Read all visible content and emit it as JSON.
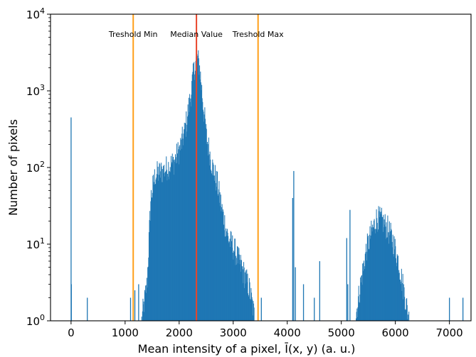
{
  "chart_data": {
    "type": "bar",
    "title": "",
    "xlabel": "Mean intensity of a pixel, Ī(x, y) (a. u.)",
    "ylabel": "Number of pixels",
    "xlim": [
      -380,
      7400
    ],
    "ylim": [
      1,
      10000
    ],
    "yscale": "log",
    "grid": false,
    "bar_color": "#1f77b4",
    "x_ticks": [
      0,
      1000,
      2000,
      3000,
      4000,
      5000,
      6000,
      7000
    ],
    "x_tick_labels": [
      "0",
      "1000",
      "2000",
      "3000",
      "4000",
      "5000",
      "6000",
      "7000"
    ],
    "y_ticks": [
      1,
      10,
      100,
      1000,
      10000
    ],
    "y_tick_labels": [
      {
        "base": "10",
        "exp": "0"
      },
      {
        "base": "10",
        "exp": "1"
      },
      {
        "base": "10",
        "exp": "2"
      },
      {
        "base": "10",
        "exp": "3"
      },
      {
        "base": "10",
        "exp": "4"
      }
    ],
    "histogram_envelope": [
      {
        "x": 1300,
        "y": 1
      },
      {
        "x": 1400,
        "y": 3
      },
      {
        "x": 1470,
        "y": 40
      },
      {
        "x": 1550,
        "y": 80
      },
      {
        "x": 1700,
        "y": 90
      },
      {
        "x": 1900,
        "y": 120
      },
      {
        "x": 2000,
        "y": 170
      },
      {
        "x": 2100,
        "y": 300
      },
      {
        "x": 2200,
        "y": 800
      },
      {
        "x": 2250,
        "y": 1500
      },
      {
        "x": 2300,
        "y": 2400
      },
      {
        "x": 2330,
        "y": 2700
      },
      {
        "x": 2370,
        "y": 2100
      },
      {
        "x": 2420,
        "y": 900
      },
      {
        "x": 2500,
        "y": 250
      },
      {
        "x": 2600,
        "y": 110
      },
      {
        "x": 2700,
        "y": 60
      },
      {
        "x": 2800,
        "y": 25
      },
      {
        "x": 2900,
        "y": 12
      },
      {
        "x": 3000,
        "y": 9
      },
      {
        "x": 3100,
        "y": 6
      },
      {
        "x": 3200,
        "y": 4
      },
      {
        "x": 3300,
        "y": 2.5
      },
      {
        "x": 3400,
        "y": 1
      },
      {
        "x": 5250,
        "y": 1
      },
      {
        "x": 5350,
        "y": 3
      },
      {
        "x": 5450,
        "y": 8
      },
      {
        "x": 5550,
        "y": 14
      },
      {
        "x": 5650,
        "y": 22
      },
      {
        "x": 5750,
        "y": 20
      },
      {
        "x": 5850,
        "y": 16
      },
      {
        "x": 5950,
        "y": 11
      },
      {
        "x": 6050,
        "y": 6
      },
      {
        "x": 6150,
        "y": 2.5
      },
      {
        "x": 6250,
        "y": 1
      }
    ],
    "isolated_bins": [
      {
        "x": 0,
        "y": 450
      },
      {
        "x": 5,
        "y": 3
      },
      {
        "x": 300,
        "y": 2
      },
      {
        "x": 1100,
        "y": 2
      },
      {
        "x": 1180,
        "y": 2.5
      },
      {
        "x": 1250,
        "y": 3
      },
      {
        "x": 3520,
        "y": 2
      },
      {
        "x": 4100,
        "y": 40
      },
      {
        "x": 4120,
        "y": 90
      },
      {
        "x": 4150,
        "y": 5
      },
      {
        "x": 4300,
        "y": 3
      },
      {
        "x": 4600,
        "y": 6
      },
      {
        "x": 4500,
        "y": 2
      },
      {
        "x": 5100,
        "y": 12
      },
      {
        "x": 5160,
        "y": 28
      },
      {
        "x": 5120,
        "y": 3
      },
      {
        "x": 7000,
        "y": 2
      },
      {
        "x": 7250,
        "y": 2
      }
    ],
    "vertical_lines": [
      {
        "x": 1150,
        "label": "Treshold Min",
        "color": "#ff9f1a",
        "label_anchor": "middle"
      },
      {
        "x": 2320,
        "label": "Median Value",
        "color": "#e8452a",
        "label_anchor": "middle"
      },
      {
        "x": 3460,
        "label": "Treshold Max",
        "color": "#ff9f1a",
        "label_anchor": "middle"
      }
    ]
  }
}
